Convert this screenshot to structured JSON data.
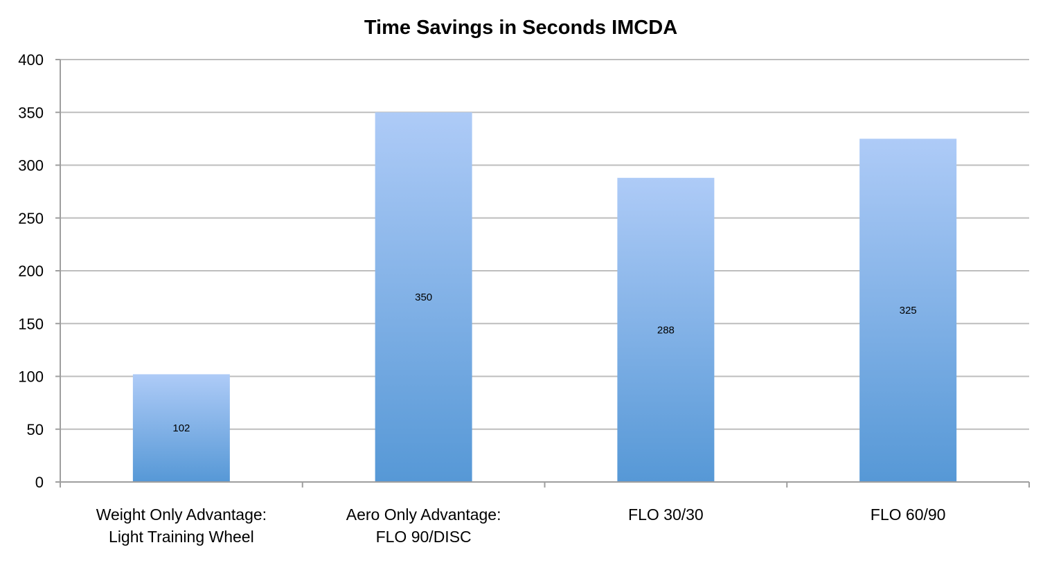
{
  "chart_data": {
    "type": "bar",
    "title": "Time Savings in Seconds IMCDA",
    "xlabel": "",
    "ylabel": "",
    "categories": [
      [
        "Weight Only Advantage:",
        "Light Training Wheel"
      ],
      [
        "Aero Only Advantage:",
        "FLO 90/DISC"
      ],
      [
        "FLO 30/30"
      ],
      [
        "FLO 60/90"
      ]
    ],
    "values": [
      102,
      350,
      288,
      325
    ],
    "data_labels": [
      "102",
      "350",
      "288",
      "325"
    ],
    "ylim": [
      0,
      400
    ],
    "yticks": [
      "0",
      "50",
      "100",
      "150",
      "200",
      "250",
      "300",
      "350",
      "400"
    ],
    "grid": true,
    "legend": "none",
    "colors": {
      "bar_top": "#aecbf7",
      "bar_bottom": "#5698d6",
      "gridline": "#bdbdbd",
      "axis": "#9e9e9e"
    }
  }
}
